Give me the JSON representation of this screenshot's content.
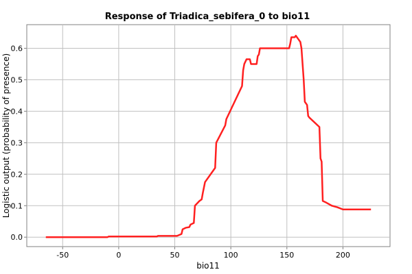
{
  "chart_data": {
    "type": "line",
    "title": "Response of Triadica_sebifera_0 to bio11",
    "xlabel": "bio11",
    "ylabel": "Logistic output (probability of presence)",
    "xlim": [
      -82,
      242
    ],
    "ylim": [
      -0.03,
      0.675
    ],
    "x_ticks": [
      -50,
      0,
      50,
      100,
      150,
      200
    ],
    "y_ticks": [
      0.0,
      0.1,
      0.2,
      0.3,
      0.4,
      0.5,
      0.6
    ],
    "y_tick_labels": [
      "0.0",
      "0.1",
      "0.2",
      "0.3",
      "0.4",
      "0.5",
      "0.6"
    ],
    "grid": true,
    "line_color": "#ff2020",
    "series": [
      {
        "name": "",
        "x": [
          -65,
          -10,
          -9,
          34,
          35,
          52,
          56,
          57,
          60,
          63,
          64,
          67,
          68,
          72,
          74,
          75,
          77,
          86,
          87,
          95,
          96,
          110,
          111,
          112,
          114,
          117,
          118,
          123,
          124,
          125,
          126,
          152,
          153,
          154,
          157,
          158,
          160,
          162,
          163,
          165,
          166,
          167,
          168,
          169,
          170,
          179,
          180,
          181,
          182,
          185,
          190,
          195,
          200,
          225
        ],
        "y": [
          0.0,
          0.0,
          0.002,
          0.002,
          0.004,
          0.004,
          0.01,
          0.025,
          0.03,
          0.032,
          0.04,
          0.045,
          0.1,
          0.115,
          0.12,
          0.14,
          0.175,
          0.22,
          0.3,
          0.355,
          0.375,
          0.48,
          0.53,
          0.55,
          0.565,
          0.565,
          0.55,
          0.55,
          0.575,
          0.58,
          0.6,
          0.6,
          0.615,
          0.635,
          0.635,
          0.64,
          0.63,
          0.62,
          0.6,
          0.5,
          0.43,
          0.425,
          0.42,
          0.385,
          0.38,
          0.35,
          0.25,
          0.24,
          0.115,
          0.11,
          0.1,
          0.095,
          0.088,
          0.088
        ]
      }
    ]
  }
}
